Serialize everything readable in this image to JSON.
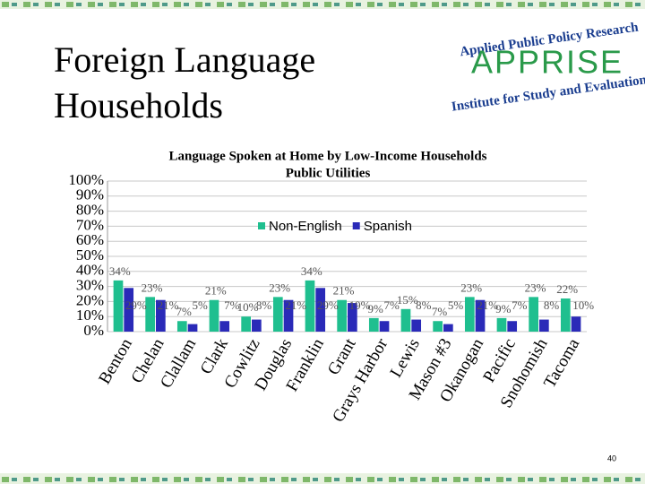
{
  "slide": {
    "title_lines": [
      "Foreign Language",
      "Households"
    ],
    "page_number": "40"
  },
  "logo": {
    "top": "Applied Public Policy Research",
    "name": "APPRISE",
    "bottom": "Institute for Study and Evaluation"
  },
  "chart_data": {
    "type": "bar",
    "title": "Language Spoken at Home by Low-Income Households",
    "subtitle": "Public Utilities",
    "categories": [
      "Benton",
      "Chelan",
      "Clallam",
      "Clark",
      "Cowlitz",
      "Douglas",
      "Franklin",
      "Grant",
      "Grays Harbor",
      "Lewis",
      "Mason #3",
      "Okanogan",
      "Pacific",
      "Snohomish",
      "Tacoma"
    ],
    "series": [
      {
        "name": "Non-English",
        "color": "#1fbf8f",
        "values": [
          34,
          23,
          7,
          21,
          10,
          23,
          34,
          21,
          9,
          15,
          7,
          23,
          9,
          23,
          22
        ],
        "value_labels": [
          "34%",
          "23%",
          "7%",
          "21%",
          "10%",
          "23%",
          "34%",
          "21%",
          "9%",
          "15%",
          "7%",
          "23%",
          "9%",
          "23%",
          "22%"
        ]
      },
      {
        "name": "Spanish",
        "color": "#2a2ab8",
        "values": [
          29,
          21,
          5,
          7,
          8,
          21,
          29,
          19,
          7,
          8,
          5,
          21,
          7,
          8,
          10
        ],
        "value_labels": [
          "29%",
          "21%",
          "5%",
          "7%",
          "8%",
          "21%",
          "29%",
          "19%",
          "7%",
          "8%",
          "5%",
          "21%",
          "7%",
          "8%",
          "10%"
        ]
      }
    ],
    "ylim": [
      0,
      100
    ],
    "yticks": [
      {
        "value": 0,
        "label": "0%"
      },
      {
        "value": 10,
        "label": "10%"
      },
      {
        "value": 20,
        "label": "20%"
      },
      {
        "value": 30,
        "label": "30%"
      },
      {
        "value": 40,
        "label": "40%"
      },
      {
        "value": 50,
        "label": "50%"
      },
      {
        "value": 60,
        "label": "60%"
      },
      {
        "value": 70,
        "label": "70%"
      },
      {
        "value": 80,
        "label": "80%"
      },
      {
        "value": 90,
        "label": "90%"
      },
      {
        "value": 100,
        "label": "100%"
      }
    ],
    "grid": true,
    "legend": "top"
  }
}
